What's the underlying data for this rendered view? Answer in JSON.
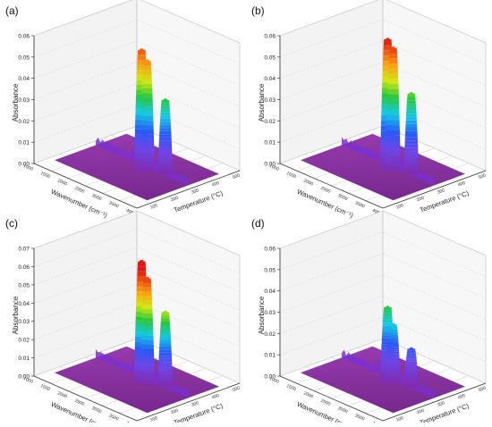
{
  "figure": {
    "panels": [
      "(a)",
      "(b)",
      "(c)",
      "(d)"
    ]
  },
  "chart_data": [
    {
      "panel": "(a)",
      "type": "surface3d",
      "ylabel": "Absorbance",
      "xlabel": "Wavenumber (cm⁻¹)",
      "zlabel": "Temperature (°C)",
      "yticks": [
        "0.00",
        "0.01",
        "0.02",
        "0.03",
        "0.04",
        "0.05",
        "0.06"
      ],
      "ylim": [
        0,
        0.06
      ],
      "xticks": [
        "4000",
        "3500",
        "3000",
        "2500",
        "2000",
        "1500",
        "1000"
      ],
      "zticks": [
        "100",
        "200",
        "300",
        "400",
        "500"
      ],
      "peaks": [
        {
          "wavenumber": 2360,
          "temperature": 300,
          "absorbance": 0.056
        },
        {
          "wavenumber": 2200,
          "temperature": 300,
          "absorbance": 0.052
        },
        {
          "wavenumber": 1850,
          "temperature": 330,
          "absorbance": 0.035
        }
      ],
      "color_scale": "absorbance"
    },
    {
      "panel": "(b)",
      "type": "surface3d",
      "ylabel": "Absorbance",
      "xlabel": "Wavenumber (cm⁻¹)",
      "zlabel": "Temperature (°C)",
      "yticks": [
        "0.00",
        "0.01",
        "0.02",
        "0.03",
        "0.04",
        "0.05",
        "0.06"
      ],
      "ylim": [
        0,
        0.06
      ],
      "xticks": [
        "4000",
        "3500",
        "3000",
        "2500",
        "2000",
        "1500",
        "1000"
      ],
      "zticks": [
        "100",
        "200",
        "300",
        "400",
        "500"
      ],
      "peaks": [
        {
          "wavenumber": 2360,
          "temperature": 300,
          "absorbance": 0.061
        },
        {
          "wavenumber": 2200,
          "temperature": 300,
          "absorbance": 0.058
        },
        {
          "wavenumber": 1850,
          "temperature": 330,
          "absorbance": 0.038
        }
      ],
      "color_scale": "absorbance"
    },
    {
      "panel": "(c)",
      "type": "surface3d",
      "ylabel": "Absorbance",
      "xlabel": "Wavenumber (cm⁻¹)",
      "zlabel": "Temperature (°C)",
      "yticks": [
        "0.00",
        "0.01",
        "0.02",
        "0.03",
        "0.04",
        "0.05",
        "0.06",
        "0.07"
      ],
      "ylim": [
        0,
        0.07
      ],
      "xticks": [
        "4000",
        "3500",
        "3000",
        "2500",
        "2000",
        "1500",
        "1000"
      ],
      "zticks": [
        "100",
        "200",
        "300",
        "400",
        "500"
      ],
      "peaks": [
        {
          "wavenumber": 2360,
          "temperature": 300,
          "absorbance": 0.066
        },
        {
          "wavenumber": 2200,
          "temperature": 300,
          "absorbance": 0.058
        },
        {
          "wavenumber": 1850,
          "temperature": 330,
          "absorbance": 0.041
        }
      ],
      "color_scale": "absorbance"
    },
    {
      "panel": "(d)",
      "type": "surface3d",
      "ylabel": "Absorbance",
      "xlabel": "Wavenumber (cm⁻¹)",
      "zlabel": "Temperature (°C)",
      "yticks": [
        "0.00",
        "0.01",
        "0.02",
        "0.03",
        "0.04",
        "0.05",
        "0.06"
      ],
      "ylim": [
        0,
        0.06
      ],
      "xticks": [
        "4000",
        "3500",
        "3000",
        "2500",
        "2000",
        "1500",
        "1000"
      ],
      "zticks": [
        "100",
        "200",
        "300",
        "400",
        "500"
      ],
      "peaks": [
        {
          "wavenumber": 2360,
          "temperature": 300,
          "absorbance": 0.035
        },
        {
          "wavenumber": 2200,
          "temperature": 300,
          "absorbance": 0.028
        },
        {
          "wavenumber": 1850,
          "temperature": 330,
          "absorbance": 0.018
        }
      ],
      "color_scale": "absorbance"
    }
  ]
}
